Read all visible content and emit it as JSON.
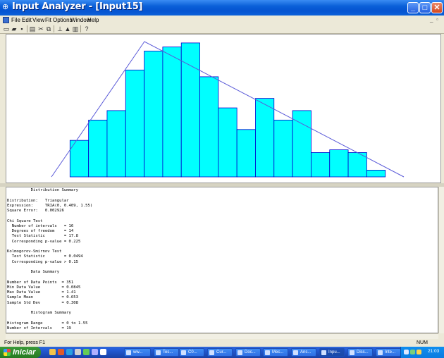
{
  "window": {
    "title": "Input Analyzer - [Input15]",
    "min_label": "_",
    "max_label": "□",
    "close_label": "✕"
  },
  "menu": [
    "File",
    "Edit",
    "View",
    "Fit",
    "Options",
    "Window",
    "Help"
  ],
  "toolbar_icons": [
    "new-icon",
    "open-icon",
    "save-icon",
    "print-icon",
    "cut-icon",
    "copy-icon",
    "fit-icon",
    "chart-icon",
    "histogram-icon",
    "help-icon"
  ],
  "chart_data": {
    "type": "bar",
    "title": "",
    "xlabel": "",
    "ylabel": "",
    "xlim": [
      0,
      1.55
    ],
    "ylim": [
      0,
      1
    ],
    "bin_edges": [
      0,
      0.0816,
      0.1632,
      0.2447,
      0.3263,
      0.4079,
      0.4895,
      0.5711,
      0.6526,
      0.7342,
      0.8158,
      0.8974,
      0.9789,
      1.0605,
      1.1421,
      1.2237,
      1.3053,
      1.3868,
      1.4684,
      1.55
    ],
    "values": [
      0,
      0.27,
      0.42,
      0.49,
      0.79,
      0.93,
      0.96,
      0.99,
      0.74,
      0.51,
      0.35,
      0.58,
      0.42,
      0.49,
      0.18,
      0.2,
      0.18,
      0.05,
      0
    ],
    "fit_line": {
      "name": "TRIA(0, 0.409, 1.55)",
      "x": [
        0.0,
        0.409,
        1.55
      ],
      "y": [
        0.0,
        1.0,
        0.0
      ]
    },
    "colors": {
      "bars": "#00ffff",
      "bar_edge": "#0000cc",
      "fit": "#5a5ad8"
    }
  },
  "summary": {
    "lines": [
      "          Distribution Summary",
      "",
      "Distribution:   Triangular",
      "Expression:     TRIA(0, 0.409, 1.55)",
      "Square Error:   0.002926",
      "",
      "Chi Square Test",
      "  Number of intervals   = 16",
      "  Degrees of freedom    = 14",
      "  Test Statistic        = 17.8",
      "  Corresponding p-value = 0.225",
      "",
      "Kolmogorov-Smirnov Test",
      "  Test Statistic        = 0.0494",
      "  Corresponding p-value > 0.15",
      "",
      "          Data Summary",
      "",
      "Number of Data Points  = 351",
      "Min Data Value         = 0.0845",
      "Max Data Value         = 1.41",
      "Sample Mean            = 0.653",
      "Sample Std Dev         = 0.308",
      "",
      "          Histogram Summary",
      "",
      "Histogram Range        = 0 to 1.55",
      "Number of Intervals    = 19"
    ]
  },
  "status": {
    "message": "For Help, press F1",
    "num": "NUM"
  },
  "taskbar": {
    "start_label": "Iniciar",
    "tasks": [
      "ww...",
      "Tes...",
      "C0...",
      "Cur...",
      "Doc...",
      "Mec...",
      "Ans...",
      "Inpu...",
      "Diss...",
      "Inte..."
    ],
    "active_task": 7,
    "clock": "21:03"
  }
}
